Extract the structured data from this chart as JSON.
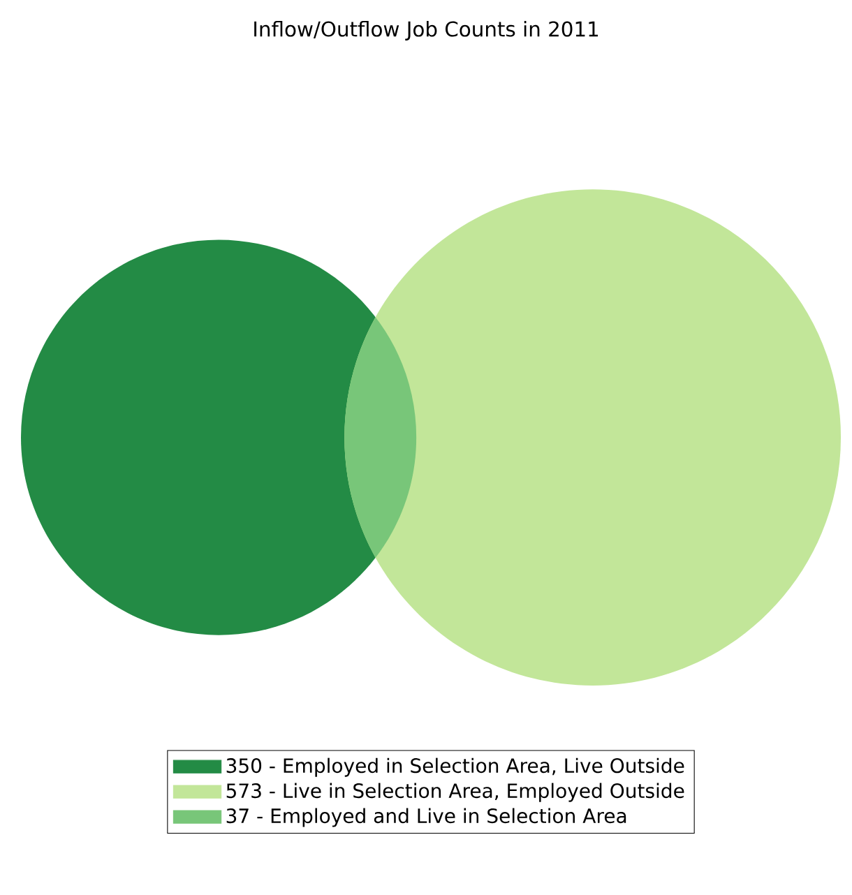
{
  "chart_data": {
    "type": "other",
    "title": "Inflow/Outflow Job Counts in 2011",
    "categories": [
      "Employed in Selection Area, Live Outside",
      "Live in Selection Area, Employed Outside",
      "Employed and Live in Selection Area"
    ],
    "values": [
      350,
      573,
      37
    ],
    "value_labels": [
      "350 -",
      "573 -",
      "37 -"
    ],
    "colors": [
      "#238b45",
      "#c2e699",
      "#78c679"
    ]
  }
}
